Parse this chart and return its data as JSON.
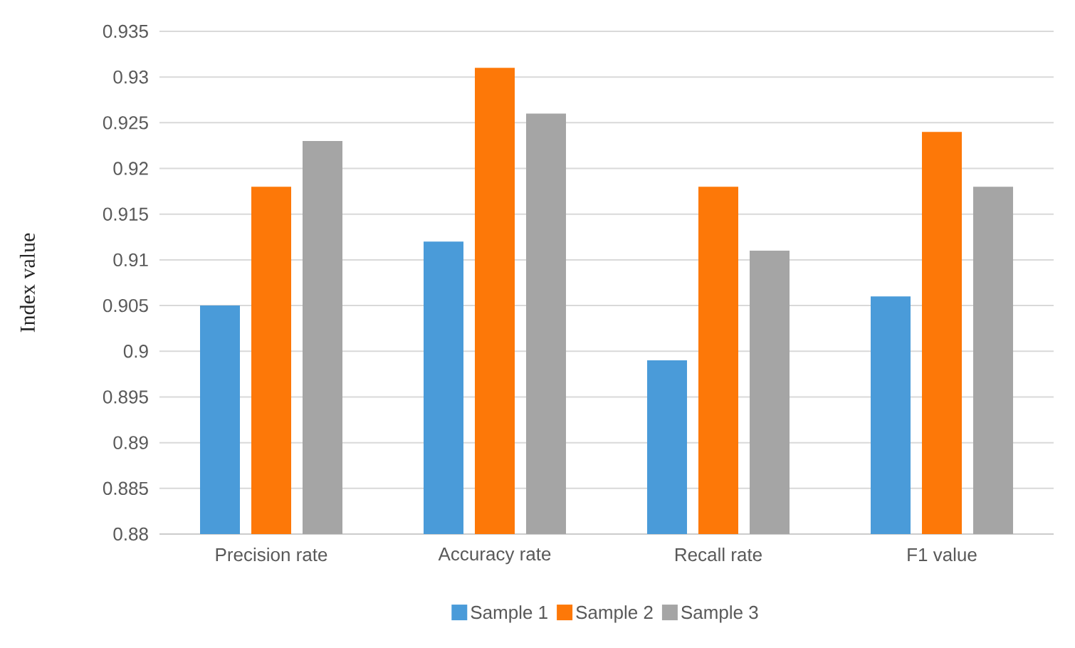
{
  "chart_data": {
    "type": "bar",
    "ylabel": "Index value",
    "categories": [
      "Precision rate",
      "Accuracy rate",
      "Recall rate",
      "F1 value"
    ],
    "series": [
      {
        "name": "Sample 1",
        "color": "#4a9bd9",
        "values": [
          0.905,
          0.912,
          0.899,
          0.906
        ]
      },
      {
        "name": "Sample 2",
        "color": "#fd7808",
        "values": [
          0.918,
          0.931,
          0.918,
          0.924
        ]
      },
      {
        "name": "Sample 3",
        "color": "#a5a5a5",
        "values": [
          0.923,
          0.926,
          0.911,
          0.918
        ]
      }
    ],
    "ylim": [
      0.88,
      0.935
    ],
    "yticks": [
      0.88,
      0.885,
      0.89,
      0.895,
      0.9,
      0.905,
      0.91,
      0.915,
      0.92,
      0.925,
      0.93,
      0.935
    ],
    "grid": "y",
    "legend": "bottom"
  }
}
